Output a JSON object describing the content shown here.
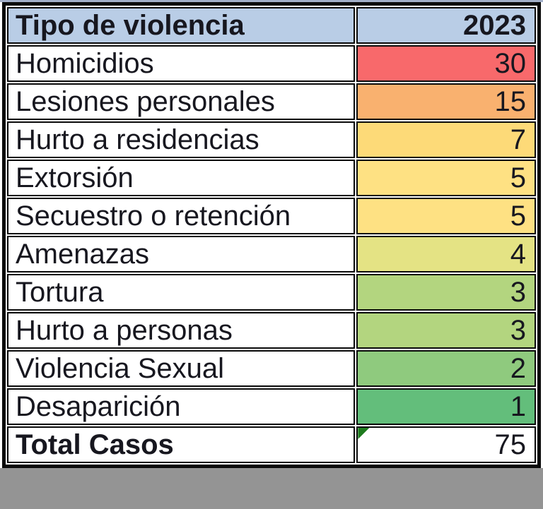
{
  "table": {
    "header": {
      "type_label": "Tipo de violencia",
      "year_label": "2023",
      "bg": "#B9CDE6"
    },
    "rows": [
      {
        "label": "Homicidios",
        "value": "30",
        "bg": "#F8696B"
      },
      {
        "label": "Lesiones personales",
        "value": "15",
        "bg": "#F9B16F"
      },
      {
        "label": "Hurto a residencias",
        "value": "7",
        "bg": "#FDDA78"
      },
      {
        "label": "Extorsión",
        "value": "5",
        "bg": "#FEE183"
      },
      {
        "label": "Secuestro o retención",
        "value": "5",
        "bg": "#FEE183"
      },
      {
        "label": "Amenazas",
        "value": "4",
        "bg": "#E4E384"
      },
      {
        "label": "Tortura",
        "value": "3",
        "bg": "#B3D57F"
      },
      {
        "label": "Hurto a personas",
        "value": "3",
        "bg": "#B3D57F"
      },
      {
        "label": "Violencia Sexual",
        "value": "2",
        "bg": "#8FCA7E"
      },
      {
        "label": "Desaparición",
        "value": "1",
        "bg": "#63BE7B"
      }
    ],
    "total": {
      "label": "Total Casos",
      "value": "75",
      "bg": "#FFFFFF",
      "indicator_color": "#1E7B1E"
    }
  },
  "chart_data": {
    "type": "table",
    "title": "Tipo de violencia 2023",
    "columns": [
      "Tipo de violencia",
      "2023"
    ],
    "categories": [
      "Homicidios",
      "Lesiones personales",
      "Hurto a residencias",
      "Extorsión",
      "Secuestro o retención",
      "Amenazas",
      "Tortura",
      "Hurto a personas",
      "Violencia Sexual",
      "Desaparición"
    ],
    "values": [
      30,
      15,
      7,
      5,
      5,
      4,
      3,
      3,
      2,
      1
    ],
    "total_label": "Total Casos",
    "total": 75,
    "color_scale": {
      "high": "#F8696B",
      "mid": "#FFEB84",
      "low": "#63BE7B"
    },
    "header_bg": "#B9CDE6"
  }
}
